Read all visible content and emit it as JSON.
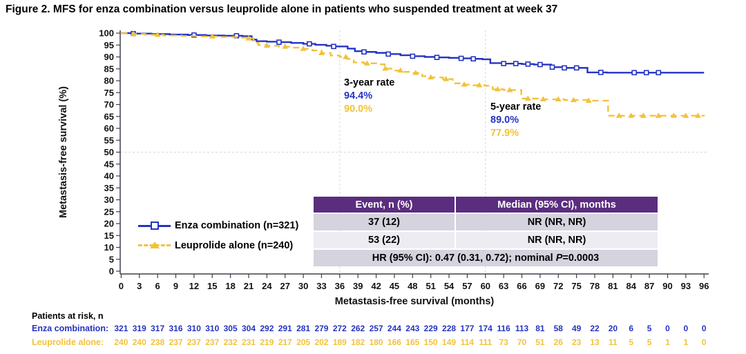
{
  "figure": {
    "title": "Figure 2. MFS for enza combination versus leuprolide alone in patients who suspended treatment at week 37"
  },
  "colors": {
    "enza": "#2533c2",
    "leuprolide": "#f2c23b",
    "purple_header": "#5b2d7f",
    "row_dark": "#d5d3de",
    "row_light": "#edecf3",
    "gridline": "#d6d6d6",
    "axis": "#3e3e4c"
  },
  "chart_data": {
    "type": "line",
    "subtype": "kaplan-meier-step",
    "title": "Figure 2. MFS for enza combination versus leuprolide alone in patients who suspended treatment at week 37",
    "xlabel": "Metastasis-free survival (months)",
    "ylabel": "Metastasis-free survival (%)",
    "xlim": [
      0,
      96
    ],
    "ylim": [
      0,
      100
    ],
    "xticks": [
      0,
      3,
      6,
      9,
      12,
      15,
      18,
      21,
      24,
      27,
      30,
      33,
      36,
      39,
      42,
      45,
      48,
      51,
      54,
      57,
      60,
      63,
      66,
      69,
      72,
      75,
      78,
      81,
      84,
      87,
      90,
      93,
      96
    ],
    "muted_xticks": [
      6
    ],
    "yticks": [
      0,
      5,
      10,
      15,
      20,
      25,
      30,
      35,
      40,
      45,
      50,
      55,
      60,
      65,
      70,
      75,
      80,
      85,
      90,
      95,
      100
    ],
    "grid": {
      "vertical_months": [
        36,
        60
      ],
      "horizontal_pct": [
        50
      ]
    },
    "legend_position": "left-middle",
    "series": [
      {
        "name": "Enza combination (n=321)",
        "color_key": "enza",
        "line": "solid",
        "marker": "open-square",
        "steps": [
          [
            0,
            100
          ],
          [
            2,
            99.8
          ],
          [
            5,
            99.6
          ],
          [
            8,
            99.4
          ],
          [
            11,
            99.2
          ],
          [
            14,
            99.0
          ],
          [
            17,
            98.9
          ],
          [
            20,
            98.7
          ],
          [
            21.5,
            97.3
          ],
          [
            22.3,
            96.6
          ],
          [
            24,
            96.4
          ],
          [
            26,
            96.2
          ],
          [
            28,
            95.9
          ],
          [
            30,
            95.5
          ],
          [
            32,
            95.1
          ],
          [
            33.8,
            94.7
          ],
          [
            35,
            94.4
          ],
          [
            37.3,
            93.5
          ],
          [
            38.5,
            92.4
          ],
          [
            40,
            92.1
          ],
          [
            42,
            91.7
          ],
          [
            44,
            91.2
          ],
          [
            46,
            90.7
          ],
          [
            48,
            90.3
          ],
          [
            50,
            90.0
          ],
          [
            52,
            89.8
          ],
          [
            54,
            89.6
          ],
          [
            56,
            89.4
          ],
          [
            58,
            89.2
          ],
          [
            59.5,
            89.0
          ],
          [
            60.8,
            87.4
          ],
          [
            63,
            87.2
          ],
          [
            66,
            87.0
          ],
          [
            68,
            86.8
          ],
          [
            70.8,
            85.7
          ],
          [
            73,
            85.4
          ],
          [
            76.8,
            83.5
          ],
          [
            80,
            83.4
          ],
          [
            96,
            83.4
          ]
        ],
        "censor_marks": [
          2,
          12,
          19,
          26,
          31,
          35,
          40,
          44,
          48,
          52,
          56,
          58,
          63,
          65,
          67,
          69,
          71,
          73,
          75,
          79,
          84.5,
          86.5,
          88.5
        ]
      },
      {
        "name": "Leuprolide alone (n=240)",
        "color_key": "leuprolide",
        "line": "dashed",
        "marker": "filled-triangle",
        "steps": [
          [
            0,
            100
          ],
          [
            2,
            99.6
          ],
          [
            4,
            99.3
          ],
          [
            7,
            99.0
          ],
          [
            10,
            98.8
          ],
          [
            13,
            98.6
          ],
          [
            16,
            98.4
          ],
          [
            19,
            98.1
          ],
          [
            21,
            97.8
          ],
          [
            21.8,
            95.9
          ],
          [
            22.6,
            95.0
          ],
          [
            24,
            94.7
          ],
          [
            26,
            94.3
          ],
          [
            28,
            93.9
          ],
          [
            30,
            93.4
          ],
          [
            31.5,
            92.7
          ],
          [
            33,
            91.6
          ],
          [
            34.5,
            90.6
          ],
          [
            36,
            90.0
          ],
          [
            37.2,
            89.2
          ],
          [
            38.3,
            87.7
          ],
          [
            40,
            87.3
          ],
          [
            42,
            86.9
          ],
          [
            43.4,
            85.1
          ],
          [
            45,
            84.3
          ],
          [
            46.5,
            83.7
          ],
          [
            48,
            83.3
          ],
          [
            49.6,
            81.9
          ],
          [
            51,
            81.4
          ],
          [
            53,
            80.7
          ],
          [
            54.6,
            78.9
          ],
          [
            56,
            78.4
          ],
          [
            58,
            78.1
          ],
          [
            60,
            77.9
          ],
          [
            61.2,
            76.4
          ],
          [
            63,
            76.1
          ],
          [
            65.9,
            72.5
          ],
          [
            69,
            72.2
          ],
          [
            73,
            71.9
          ],
          [
            77,
            71.6
          ],
          [
            80.2,
            65.3
          ],
          [
            96,
            65.1
          ]
        ],
        "censor_marks": [
          2,
          6,
          15,
          21,
          24,
          27,
          30,
          33,
          37,
          40.5,
          43.5,
          46,
          48.5,
          51,
          53.5,
          56.5,
          59,
          62,
          64,
          67,
          69.5,
          72,
          74.5,
          77,
          82,
          84,
          86,
          88.5,
          91,
          93,
          95
        ]
      }
    ],
    "annotations": [
      {
        "label": "3-year rate",
        "at_month": 36,
        "values": [
          {
            "text": "94.4%",
            "series": "enza"
          },
          {
            "text": "90.0%",
            "series": "leuprolide"
          }
        ]
      },
      {
        "label": "5-year rate",
        "at_month": 60,
        "values": [
          {
            "text": "89.0%",
            "series": "enza"
          },
          {
            "text": "77.9%",
            "series": "leuprolide"
          }
        ]
      }
    ]
  },
  "summary_table": {
    "headers": [
      "Event, n (%)",
      "Median (95% CI), months"
    ],
    "rows": [
      [
        "37 (12)",
        "NR (NR, NR)"
      ],
      [
        "53 (22)",
        "NR (NR, NR)"
      ]
    ],
    "footer": {
      "prefix": "HR (95% CI): 0.47 (0.31, 0.72); nominal ",
      "p": "P",
      "suffix": "=0.0003"
    }
  },
  "at_risk": {
    "title": "Patients at risk, n",
    "rows": [
      {
        "label": "Enza combination:",
        "counts": [
          321,
          319,
          317,
          316,
          310,
          310,
          305,
          304,
          292,
          291,
          281,
          279,
          272,
          262,
          257,
          244,
          243,
          229,
          228,
          177,
          174,
          116,
          113,
          81,
          58,
          49,
          22,
          20,
          6,
          5,
          0,
          0,
          0
        ]
      },
      {
        "label": "Leuprolide alone:",
        "counts": [
          240,
          240,
          238,
          237,
          237,
          237,
          232,
          231,
          219,
          217,
          205,
          202,
          189,
          182,
          180,
          166,
          165,
          150,
          149,
          114,
          111,
          73,
          70,
          51,
          26,
          23,
          13,
          11,
          5,
          5,
          1,
          1,
          0
        ]
      }
    ]
  }
}
